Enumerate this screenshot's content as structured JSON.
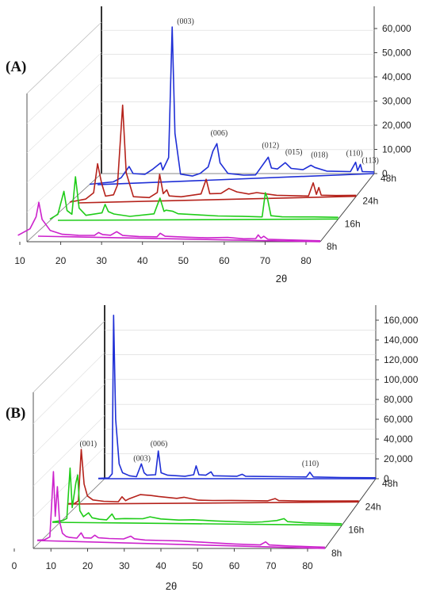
{
  "chart_data": [
    {
      "type": "line",
      "panel_label": "(A)",
      "xlabel": "2θ",
      "x_ticks": [
        "10",
        "20",
        "30",
        "40",
        "50",
        "60",
        "70",
        "80"
      ],
      "z_ticks": [
        "0",
        "10,000",
        "20,000",
        "30,000",
        "40,000",
        "50,000",
        "60,000"
      ],
      "xlim": [
        5,
        83
      ],
      "zlim": [
        0,
        65000
      ],
      "series": [
        {
          "name": "48h",
          "color": "#1f2fd6",
          "points": [
            [
              8,
              300
            ],
            [
              14,
              900
            ],
            [
              16,
              2500
            ],
            [
              18,
              7000
            ],
            [
              19,
              4000
            ],
            [
              22,
              3500
            ],
            [
              24,
              5500
            ],
            [
              26,
              8000
            ],
            [
              26.5,
              5000
            ],
            [
              28,
              10000
            ],
            [
              28.9,
              64000
            ],
            [
              29.6,
              20000
            ],
            [
              31,
              3000
            ],
            [
              34,
              2000
            ],
            [
              36,
              3000
            ],
            [
              38,
              5500
            ],
            [
              39.2,
              12000
            ],
            [
              40.2,
              15000
            ],
            [
              41,
              7000
            ],
            [
              43,
              2500
            ],
            [
              47,
              1500
            ],
            [
              50,
              1400
            ],
            [
              53.2,
              8500
            ],
            [
              54,
              4000
            ],
            [
              55.5,
              3500
            ],
            [
              57.5,
              6000
            ],
            [
              59,
              3500
            ],
            [
              62,
              2800
            ],
            [
              64,
              4500
            ],
            [
              65,
              3500
            ],
            [
              68,
              1800
            ],
            [
              74,
              1200
            ],
            [
              75.3,
              5000
            ],
            [
              75.8,
              1500
            ],
            [
              76.5,
              4000
            ],
            [
              77,
              1000
            ],
            [
              80,
              700
            ]
          ]
        },
        {
          "name": "24h",
          "color": "#b5221b",
          "points": [
            [
              8,
              400
            ],
            [
              12,
              1500
            ],
            [
              14,
              4000
            ],
            [
              15,
              16000
            ],
            [
              16,
              8000
            ],
            [
              17,
              2500
            ],
            [
              19,
              3000
            ],
            [
              20,
              7000
            ],
            [
              21.3,
              40000
            ],
            [
              22.2,
              12000
            ],
            [
              24,
              2000
            ],
            [
              28,
              1500
            ],
            [
              30,
              3500
            ],
            [
              30.6,
              11000
            ],
            [
              31.5,
              3000
            ],
            [
              32.4,
              4500
            ],
            [
              33,
              2000
            ],
            [
              36,
              1500
            ],
            [
              41,
              2500
            ],
            [
              42.3,
              8500
            ],
            [
              43.2,
              2500
            ],
            [
              46,
              2500
            ],
            [
              48,
              4500
            ],
            [
              50,
              3000
            ],
            [
              53,
              2000
            ],
            [
              55,
              2500
            ],
            [
              60,
              1200
            ],
            [
              68,
              600
            ],
            [
              69.2,
              6000
            ],
            [
              70,
              1200
            ],
            [
              70.6,
              4000
            ],
            [
              71.2,
              800
            ],
            [
              75,
              500
            ],
            [
              80,
              400
            ]
          ]
        },
        {
          "name": "16h",
          "color": "#1fcc18",
          "points": [
            [
              8,
              500
            ],
            [
              10,
              2500
            ],
            [
              11.5,
              12000
            ],
            [
              12.3,
              4000
            ],
            [
              13.5,
              2500
            ],
            [
              14.4,
              18000
            ],
            [
              15.3,
              5000
            ],
            [
              17,
              2000
            ],
            [
              21,
              3000
            ],
            [
              21.8,
              6500
            ],
            [
              22.6,
              3500
            ],
            [
              24,
              2500
            ],
            [
              28,
              1500
            ],
            [
              34,
              2500
            ],
            [
              35.5,
              9000
            ],
            [
              36.5,
              3500
            ],
            [
              37,
              4000
            ],
            [
              38.7,
              3500
            ],
            [
              40,
              2500
            ],
            [
              45,
              2000
            ],
            [
              50,
              1500
            ],
            [
              56,
              1300
            ],
            [
              61,
              1000
            ],
            [
              61.8,
              11000
            ],
            [
              62.3,
              9000
            ],
            [
              63.2,
              1500
            ],
            [
              66,
              1000
            ],
            [
              74,
              900
            ],
            [
              80,
              700
            ]
          ]
        },
        {
          "name": "8h",
          "color": "#cc22cc",
          "points": [
            [
              5,
              200
            ],
            [
              8,
              3000
            ],
            [
              9.5,
              8000
            ],
            [
              10.2,
              14000
            ],
            [
              11,
              7000
            ],
            [
              13,
              2500
            ],
            [
              16,
              1000
            ],
            [
              20,
              700
            ],
            [
              24,
              800
            ],
            [
              25,
              2000
            ],
            [
              26,
              1200
            ],
            [
              28,
              1000
            ],
            [
              29.5,
              2500
            ],
            [
              31,
              1000
            ],
            [
              35,
              700
            ],
            [
              39.5,
              700
            ],
            [
              40.3,
              2200
            ],
            [
              41.5,
              1000
            ],
            [
              47,
              800
            ],
            [
              52,
              700
            ],
            [
              57,
              1000
            ],
            [
              61,
              600
            ],
            [
              64,
              800
            ],
            [
              64.6,
              2300
            ],
            [
              65.3,
              1000
            ],
            [
              66,
              1800
            ],
            [
              67,
              600
            ],
            [
              72,
              500
            ],
            [
              80,
              400
            ]
          ]
        }
      ],
      "annotations": [
        "(003)",
        "(006)",
        "(012)",
        "(015)",
        "(018)",
        "(110)",
        "(113)"
      ]
    },
    {
      "type": "line",
      "panel_label": "(B)",
      "xlabel": "2θ",
      "x_ticks": [
        "0",
        "10",
        "20",
        "30",
        "40",
        "50",
        "60",
        "70",
        "80"
      ],
      "z_ticks": [
        "0",
        "20,000",
        "40,000",
        "60,000",
        "80,000",
        "100,000",
        "120,000",
        "140,000",
        "160,000"
      ],
      "xlim": [
        0,
        86
      ],
      "zlim": [
        0,
        170000
      ],
      "series": [
        {
          "name": "48h",
          "color": "#1f2fd6",
          "points": [
            [
              0,
              300
            ],
            [
              3,
              800
            ],
            [
              4,
              5000
            ],
            [
              4.4,
              165000
            ],
            [
              5,
              60000
            ],
            [
              6,
              15000
            ],
            [
              7,
              6000
            ],
            [
              9,
              3000
            ],
            [
              11,
              2000
            ],
            [
              12.4,
              15000
            ],
            [
              13.2,
              6000
            ],
            [
              14,
              3500
            ],
            [
              16.5,
              4000
            ],
            [
              17.3,
              28000
            ],
            [
              18.1,
              6000
            ],
            [
              20,
              3500
            ],
            [
              25,
              2500
            ],
            [
              27.5,
              4000
            ],
            [
              28.2,
              13000
            ],
            [
              29,
              4000
            ],
            [
              31,
              3500
            ],
            [
              32.5,
              7000
            ],
            [
              33.2,
              3000
            ],
            [
              40,
              2500
            ],
            [
              41.5,
              4500
            ],
            [
              42.5,
              2500
            ],
            [
              60,
              1800
            ],
            [
              61,
              6500
            ],
            [
              62,
              1800
            ],
            [
              70,
              1200
            ],
            [
              80,
              1000
            ]
          ]
        },
        {
          "name": "24h",
          "color": "#b5221b",
          "points": [
            [
              0,
              300
            ],
            [
              2,
              600
            ],
            [
              3,
              3000
            ],
            [
              3.8,
              55000
            ],
            [
              4.6,
              20000
            ],
            [
              5.5,
              8000
            ],
            [
              7,
              4000
            ],
            [
              10,
              2500
            ],
            [
              14,
              2000
            ],
            [
              15,
              7000
            ],
            [
              16,
              3000
            ],
            [
              17,
              5000
            ],
            [
              20,
              9000
            ],
            [
              23,
              8000
            ],
            [
              25,
              7000
            ],
            [
              30,
              5000
            ],
            [
              32,
              6000
            ],
            [
              36,
              3000
            ],
            [
              40,
              2500
            ],
            [
              45,
              2500
            ],
            [
              55,
              1800
            ],
            [
              57,
              4000
            ],
            [
              58,
              2000
            ],
            [
              65,
              1300
            ],
            [
              80,
              1000
            ]
          ]
        },
        {
          "name": "16h",
          "color": "#1fcc18",
          "points": [
            [
              0,
              300
            ],
            [
              3,
              2000
            ],
            [
              4,
              4000
            ],
            [
              4.9,
              55000
            ],
            [
              5.5,
              15000
            ],
            [
              6.5,
              40000
            ],
            [
              7,
              48000
            ],
            [
              7.6,
              12000
            ],
            [
              8.6,
              6000
            ],
            [
              10,
              10000
            ],
            [
              11,
              5000
            ],
            [
              13,
              3500
            ],
            [
              15,
              3000
            ],
            [
              16.5,
              9000
            ],
            [
              17.3,
              4000
            ],
            [
              20,
              4500
            ],
            [
              25,
              4500
            ],
            [
              27,
              6500
            ],
            [
              30,
              4500
            ],
            [
              35,
              3500
            ],
            [
              39,
              4000
            ],
            [
              45,
              3000
            ],
            [
              55,
              2000
            ],
            [
              58,
              2500
            ],
            [
              62,
              4000
            ],
            [
              64,
              6000
            ],
            [
              65,
              3000
            ],
            [
              70,
              2000
            ],
            [
              80,
              1500
            ]
          ]
        },
        {
          "name": "8h",
          "color": "#cc22cc",
          "points": [
            [
              0,
              300
            ],
            [
              2,
              1000
            ],
            [
              3.5,
              4000
            ],
            [
              4.5,
              70000
            ],
            [
              5,
              25000
            ],
            [
              5.6,
              55000
            ],
            [
              6.2,
              20000
            ],
            [
              7,
              8000
            ],
            [
              8,
              5000
            ],
            [
              9,
              4000
            ],
            [
              11,
              3500
            ],
            [
              12.2,
              9000
            ],
            [
              13,
              4000
            ],
            [
              15,
              4000
            ],
            [
              16,
              7000
            ],
            [
              17,
              4500
            ],
            [
              20,
              4000
            ],
            [
              24,
              4000
            ],
            [
              26,
              7000
            ],
            [
              27,
              4500
            ],
            [
              30,
              3500
            ],
            [
              35,
              3500
            ],
            [
              40,
              3500
            ],
            [
              45,
              3000
            ],
            [
              55,
              2000
            ],
            [
              62,
              1800
            ],
            [
              63.5,
              5000
            ],
            [
              64.5,
              2000
            ],
            [
              70,
              1500
            ],
            [
              80,
              1300
            ]
          ]
        }
      ],
      "annotations": [
        "(001)",
        "(003)",
        "(006)",
        "(110)"
      ]
    }
  ]
}
